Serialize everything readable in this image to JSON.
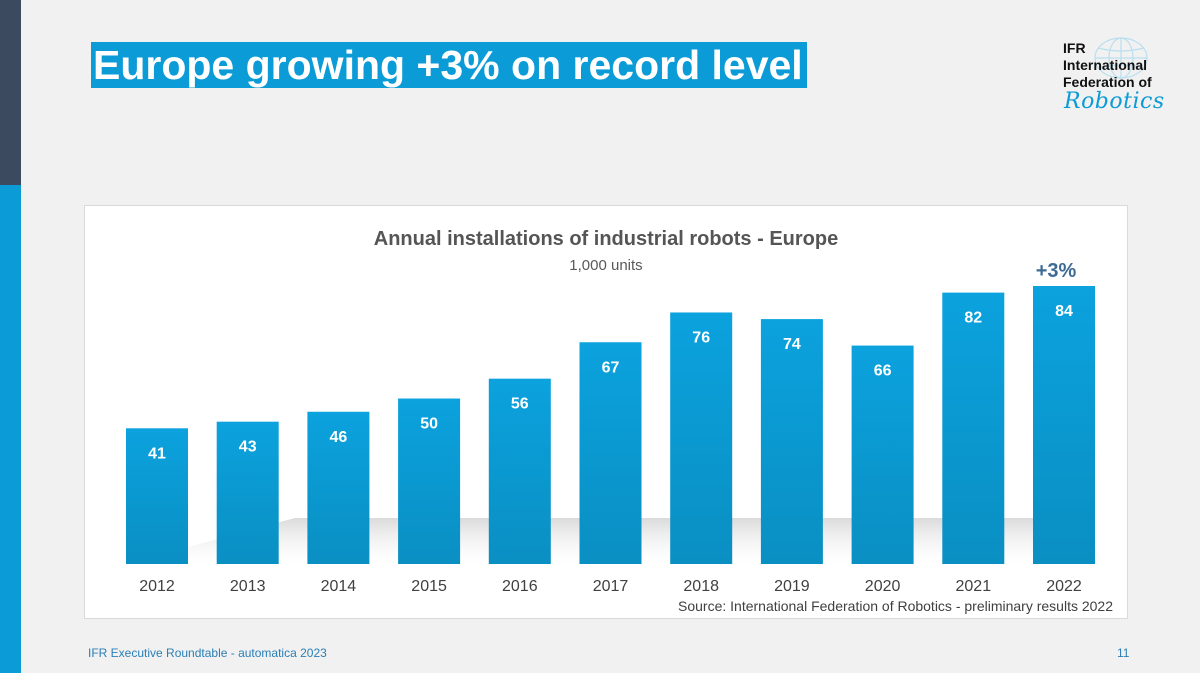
{
  "slide": {
    "title": "Europe growing +3% on record level",
    "footer": "IFR Executive Roundtable - automatica 2023",
    "page_number": "11"
  },
  "logo": {
    "line1": "IFR",
    "line2": "International",
    "line3": "Federation of",
    "script": "Robotics"
  },
  "colors": {
    "accent": "#0b9bd6",
    "bar_top": "#0ba2de",
    "bar_bottom": "#0a8fc2",
    "sidebar_dark": "#3b4a5e"
  },
  "chart_data": {
    "type": "bar",
    "title": "Annual installations of industrial robots - Europe",
    "subtitle": "1,000 units",
    "categories": [
      "2012",
      "2013",
      "2014",
      "2015",
      "2016",
      "2017",
      "2018",
      "2019",
      "2020",
      "2021",
      "2022"
    ],
    "values": [
      41,
      43,
      46,
      50,
      56,
      67,
      76,
      74,
      66,
      82,
      84
    ],
    "ylim": [
      0,
      84
    ],
    "grid": false,
    "annotation": "+3%",
    "source": "Source: International Federation of Robotics - preliminary results 2022"
  }
}
